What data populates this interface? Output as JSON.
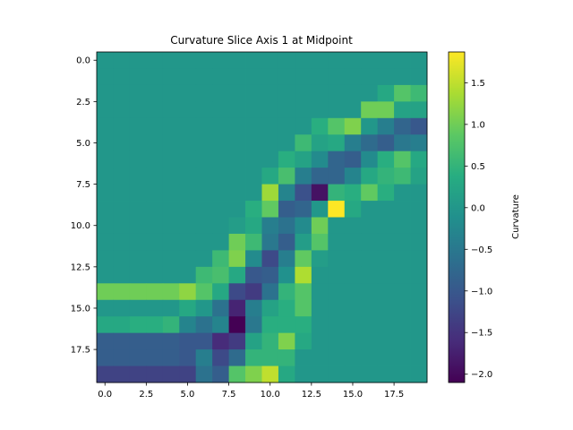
{
  "chart_data": {
    "type": "heatmap",
    "title": "Curvature Slice Axis 1 at Midpoint",
    "xlabel": "",
    "ylabel": "",
    "x_ticks": [
      0.0,
      2.5,
      5.0,
      7.5,
      10.0,
      12.5,
      15.0,
      17.5
    ],
    "x_tick_labels": [
      "0.0",
      "2.5",
      "5.0",
      "7.5",
      "10.0",
      "12.5",
      "15.0",
      "17.5"
    ],
    "y_ticks": [
      0.0,
      2.5,
      5.0,
      7.5,
      10.0,
      12.5,
      15.0,
      17.5
    ],
    "y_tick_labels": [
      "0.0",
      "2.5",
      "5.0",
      "7.5",
      "10.0",
      "12.5",
      "15.0",
      "17.5"
    ],
    "xlim": [
      -0.5,
      19.5
    ],
    "ylim": [
      19.5,
      -0.5
    ],
    "colormap": "viridis",
    "colorbar": {
      "label": "Curvature",
      "vmin": -2.1,
      "vmax": 1.87,
      "ticks": [
        -2.0,
        -1.5,
        -1.0,
        -0.5,
        0.0,
        0.5,
        1.0,
        1.5
      ],
      "tick_labels": [
        "−2.0",
        "−1.5",
        "−1.0",
        "−0.5",
        "0.0",
        "0.5",
        "1.0",
        "1.5"
      ]
    },
    "grid": false,
    "values": [
      [
        0,
        0,
        0,
        0,
        0,
        0,
        0,
        0,
        0,
        0,
        0,
        0,
        0,
        0,
        0,
        0,
        0,
        0,
        0,
        0
      ],
      [
        0,
        0,
        0,
        0,
        0,
        0,
        0,
        0,
        0,
        0,
        0,
        0,
        0,
        0,
        0,
        0,
        0,
        0,
        0,
        0
      ],
      [
        0,
        0,
        0,
        0,
        0,
        0,
        0,
        0,
        0,
        0,
        0,
        0,
        0,
        0,
        0,
        0,
        0,
        0.3,
        0.8,
        0.6
      ],
      [
        0,
        0,
        0,
        0,
        0,
        0,
        0,
        0,
        0,
        0,
        0,
        0,
        0,
        0,
        0,
        0,
        1.0,
        1.0,
        0.2,
        0.2
      ],
      [
        0,
        0,
        0,
        0,
        0,
        0,
        0,
        0,
        0,
        0,
        0,
        0,
        0,
        0.4,
        0.8,
        1.1,
        0.0,
        -0.4,
        -0.8,
        -1.0
      ],
      [
        0,
        0,
        0,
        0,
        0,
        0,
        0,
        0,
        0,
        0,
        0,
        0,
        0.6,
        0.2,
        0.3,
        -0.4,
        -0.7,
        -0.9,
        -0.5,
        -0.4
      ],
      [
        0,
        0,
        0,
        0,
        0,
        0,
        0,
        0,
        0,
        0,
        0,
        0.4,
        0.2,
        -0.2,
        -0.8,
        -0.9,
        -0.2,
        0.4,
        0.8,
        0.3
      ],
      [
        0,
        0,
        0,
        0,
        0,
        0,
        0,
        0,
        0,
        0,
        0.3,
        0.7,
        -0.4,
        -0.8,
        -0.8,
        -0.3,
        0.3,
        0.5,
        0.6,
        0.2
      ],
      [
        0,
        0,
        0,
        0,
        0,
        0,
        0,
        0,
        0,
        0,
        1.3,
        -0.3,
        -1.1,
        -1.9,
        0.5,
        0.4,
        0.9,
        0.4,
        0,
        0
      ],
      [
        0,
        0,
        0,
        0,
        0,
        0,
        0,
        0,
        0,
        0.4,
        0.9,
        -0.9,
        -0.8,
        0.0,
        1.9,
        0.3,
        0,
        0,
        0,
        0
      ],
      [
        0,
        0,
        0,
        0,
        0,
        0,
        0,
        0,
        0.1,
        0.3,
        -0.4,
        -0.6,
        -0.2,
        1.0,
        0,
        0,
        0,
        0,
        0,
        0
      ],
      [
        0,
        0,
        0,
        0,
        0,
        0,
        0,
        0,
        1.0,
        0.6,
        -0.5,
        -0.9,
        0.1,
        0.8,
        0,
        0,
        0,
        0,
        0,
        0
      ],
      [
        0,
        0,
        0,
        0,
        0,
        0,
        0,
        0.6,
        1.1,
        -0.2,
        -1.2,
        -0.4,
        0.9,
        0.1,
        0,
        0,
        0,
        0,
        0,
        0
      ],
      [
        0,
        0,
        0,
        0,
        0,
        0,
        0.6,
        0.7,
        0.3,
        -1.0,
        -0.9,
        -0.1,
        1.4,
        0,
        0,
        0,
        0,
        0,
        0,
        0
      ],
      [
        1.0,
        1.0,
        1.0,
        1.0,
        1.0,
        1.2,
        0.8,
        0.3,
        -1.2,
        -1.4,
        -0.6,
        0.5,
        0.8,
        0,
        0,
        0,
        0,
        0,
        0,
        0
      ],
      [
        0,
        0,
        0,
        0,
        0,
        0.3,
        0.0,
        -0.6,
        -1.7,
        -0.4,
        0.2,
        0.4,
        0.8,
        0,
        0,
        0,
        0,
        0,
        0,
        0
      ],
      [
        0.3,
        0.3,
        0.4,
        0.4,
        0.5,
        -0.3,
        -0.6,
        -0.3,
        -2.1,
        -0.5,
        0.4,
        0.4,
        0.4,
        0,
        0,
        0,
        0,
        0,
        0,
        0
      ],
      [
        -0.9,
        -0.9,
        -0.9,
        -0.9,
        -0.9,
        -1.0,
        -1.0,
        -1.6,
        -1.4,
        0.2,
        0.5,
        1.1,
        0.3,
        0,
        0,
        0,
        0,
        0,
        0,
        0
      ],
      [
        -0.9,
        -0.9,
        -0.9,
        -0.9,
        -0.9,
        -1.0,
        -0.4,
        -1.2,
        -0.7,
        0.5,
        0.5,
        0.5,
        0,
        0,
        0,
        0,
        0,
        0,
        0,
        0
      ],
      [
        -1.3,
        -1.3,
        -1.3,
        -1.3,
        -1.3,
        -1.3,
        -0.6,
        -0.9,
        0.8,
        1.1,
        1.5,
        0.3,
        0,
        0,
        0,
        0,
        0,
        0,
        0,
        0
      ]
    ]
  }
}
